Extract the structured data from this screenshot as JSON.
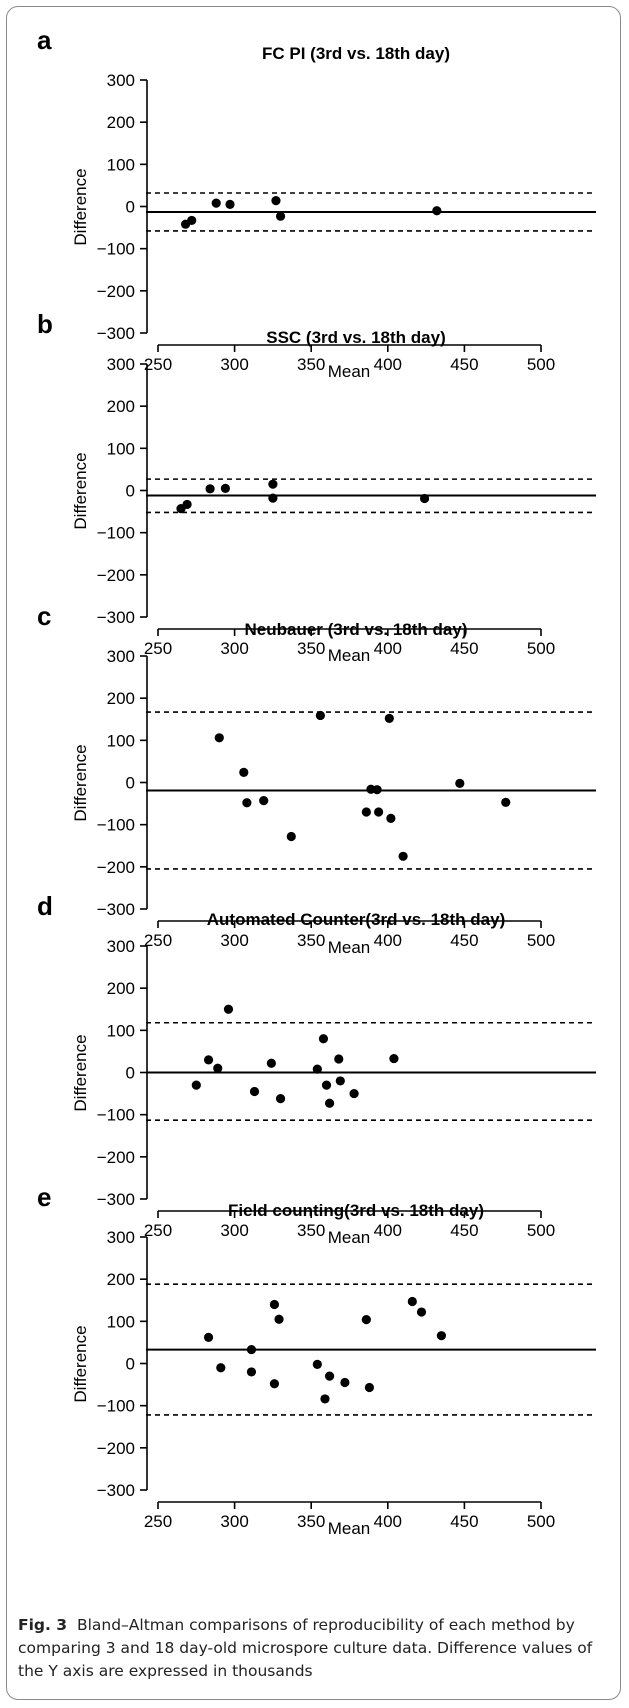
{
  "caption": {
    "figure_label": "Fig. 3",
    "text": "Bland–Altman comparisons of reproducibility of each method by comparing 3 and 18 day-old microspore culture data. Difference values of the Y axis are expressed in thousands"
  },
  "chart_data": [
    {
      "type": "scatter",
      "panel": "a",
      "title": "FC PI (3rd vs. 18th day)",
      "xlabel": "Mean",
      "ylabel": "Difference",
      "xlim": [
        250,
        500
      ],
      "ylim": [
        -300,
        300
      ],
      "xticks": [
        250,
        300,
        350,
        400,
        450,
        500
      ],
      "yticks": [
        300,
        200,
        100,
        0,
        -100,
        -200,
        -300
      ],
      "mean_line": -13,
      "loa_upper": 32,
      "loa_lower": -58,
      "points": [
        [
          268,
          -42
        ],
        [
          272,
          -33
        ],
        [
          288,
          8
        ],
        [
          297,
          5
        ],
        [
          327,
          14
        ],
        [
          330,
          -23
        ],
        [
          432,
          -10
        ]
      ]
    },
    {
      "type": "scatter",
      "panel": "b",
      "title": "SSC (3rd vs. 18th day)",
      "xlabel": "Mean",
      "ylabel": "Difference",
      "xlim": [
        250,
        500
      ],
      "ylim": [
        -300,
        300
      ],
      "xticks": [
        250,
        300,
        350,
        400,
        450,
        500
      ],
      "yticks": [
        300,
        200,
        100,
        0,
        -100,
        -200,
        -300
      ],
      "mean_line": -12,
      "loa_upper": 27,
      "loa_lower": -52,
      "points": [
        [
          265,
          -43
        ],
        [
          269,
          -33
        ],
        [
          284,
          4
        ],
        [
          294,
          5
        ],
        [
          325,
          15
        ],
        [
          325,
          -18
        ],
        [
          424,
          -19
        ]
      ]
    },
    {
      "type": "scatter",
      "panel": "c",
      "title": "Neubauer (3rd vs. 18th day)",
      "xlabel": "Mean",
      "ylabel": "Difference",
      "xlim": [
        250,
        500
      ],
      "ylim": [
        -300,
        300
      ],
      "xticks": [
        250,
        300,
        350,
        400,
        450,
        500
      ],
      "yticks": [
        300,
        200,
        100,
        0,
        -100,
        -200,
        -300
      ],
      "mean_line": -19,
      "loa_upper": 167,
      "loa_lower": -205,
      "points": [
        [
          290,
          106
        ],
        [
          306,
          24
        ],
        [
          308,
          -48
        ],
        [
          319,
          -43
        ],
        [
          337,
          -128
        ],
        [
          356,
          159
        ],
        [
          386,
          -70
        ],
        [
          389,
          -16
        ],
        [
          393,
          -17
        ],
        [
          394,
          -70
        ],
        [
          401,
          152
        ],
        [
          402,
          -85
        ],
        [
          410,
          -175
        ],
        [
          447,
          -2
        ],
        [
          477,
          -47
        ]
      ]
    },
    {
      "type": "scatter",
      "panel": "d",
      "title": "Automated Counter(3rd vs. 18th day)",
      "xlabel": "Mean",
      "ylabel": "Difference",
      "xlim": [
        250,
        500
      ],
      "ylim": [
        -300,
        300
      ],
      "xticks": [
        250,
        300,
        350,
        400,
        450,
        500
      ],
      "yticks": [
        300,
        200,
        100,
        0,
        -100,
        -200,
        -300
      ],
      "mean_line": 0,
      "loa_upper": 118,
      "loa_lower": -113,
      "points": [
        [
          275,
          -30
        ],
        [
          283,
          30
        ],
        [
          289,
          10
        ],
        [
          296,
          150
        ],
        [
          313,
          -45
        ],
        [
          324,
          22
        ],
        [
          330,
          -62
        ],
        [
          354,
          8
        ],
        [
          358,
          80
        ],
        [
          360,
          -30
        ],
        [
          362,
          -73
        ],
        [
          368,
          32
        ],
        [
          369,
          -20
        ],
        [
          378,
          -50
        ],
        [
          404,
          33
        ]
      ]
    },
    {
      "type": "scatter",
      "panel": "e",
      "title": "Field counting(3rd vs. 18th day)",
      "xlabel": "Mean",
      "ylabel": "Difference",
      "xlim": [
        250,
        500
      ],
      "ylim": [
        -300,
        300
      ],
      "xticks": [
        250,
        300,
        350,
        400,
        450,
        500
      ],
      "yticks": [
        300,
        200,
        100,
        0,
        -100,
        -200,
        -300
      ],
      "mean_line": 33,
      "loa_upper": 188,
      "loa_lower": -122,
      "points": [
        [
          283,
          62
        ],
        [
          291,
          -10
        ],
        [
          311,
          33
        ],
        [
          311,
          -20
        ],
        [
          326,
          -48
        ],
        [
          326,
          140
        ],
        [
          329,
          105
        ],
        [
          354,
          -2
        ],
        [
          359,
          -84
        ],
        [
          362,
          -30
        ],
        [
          372,
          -45
        ],
        [
          386,
          104
        ],
        [
          388,
          -57
        ],
        [
          416,
          147
        ],
        [
          422,
          122
        ],
        [
          435,
          66
        ]
      ]
    }
  ]
}
